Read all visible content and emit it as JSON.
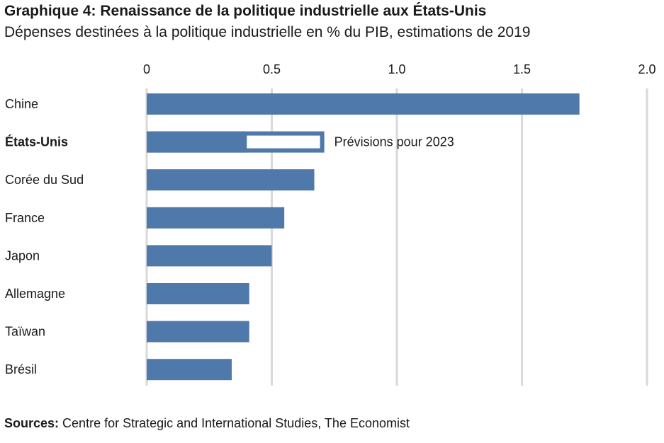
{
  "title": "Graphique 4: Renaissance de la politique industrielle aux États-Unis",
  "subtitle": "Dépenses destinées à la politique industrielle en % du PIB, estimations de 2019",
  "source": {
    "label": "Sources:",
    "text": "Centre for Strategic and International Studies, The Economist"
  },
  "chart_data": {
    "type": "bar",
    "orientation": "horizontal",
    "categories": [
      "Chine",
      "États-Unis",
      "Corée du Sud",
      "France",
      "Japon",
      "Allemagne",
      "Taïwan",
      "Brésil"
    ],
    "values": [
      1.73,
      0.4,
      0.67,
      0.55,
      0.5,
      0.41,
      0.41,
      0.34
    ],
    "highlight_category": "États-Unis",
    "forecast": {
      "category": "États-Unis",
      "value": 0.71,
      "label": "Prévisions pour 2023"
    },
    "xlim": [
      0,
      2.0
    ],
    "xticks": [
      "0",
      "0.5",
      "1.0",
      "1.5",
      "2.0"
    ],
    "xtick_values": [
      0,
      0.5,
      1.0,
      1.5,
      2.0
    ],
    "grid": true,
    "axis_position": "top",
    "bar_color": "#4f79aa",
    "grid_color": "#d9d9d9"
  }
}
